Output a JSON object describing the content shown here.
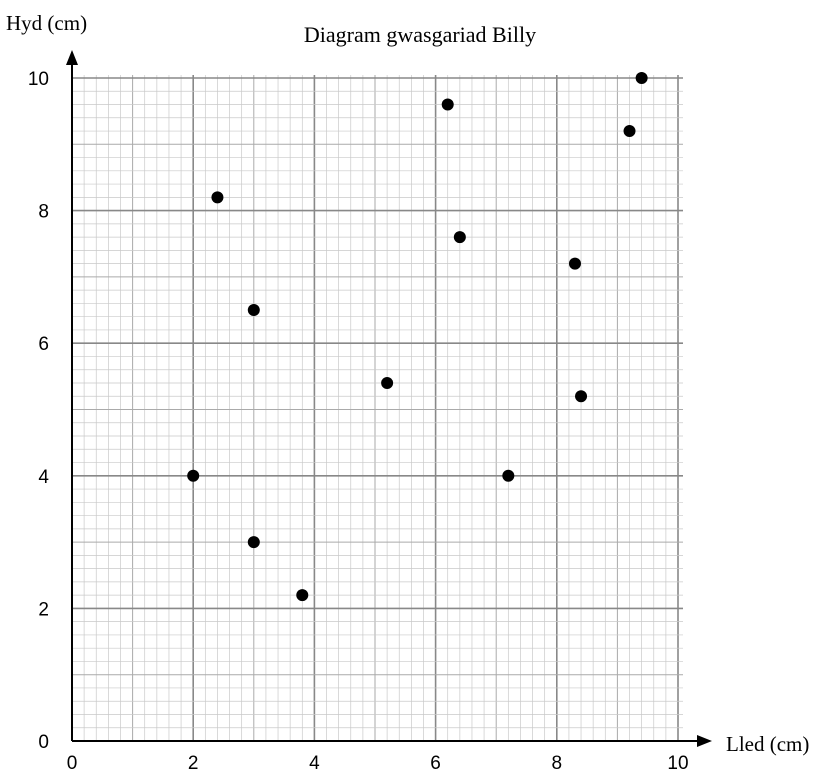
{
  "chart_data": {
    "type": "scatter",
    "title": "Diagram gwasgariad Billy",
    "xlabel": "Lled (cm)",
    "ylabel": "Hyd (cm)",
    "xlim": [
      0,
      10
    ],
    "ylim": [
      0,
      10
    ],
    "x_ticks": [
      "0",
      "2",
      "4",
      "6",
      "8",
      "10"
    ],
    "y_ticks": [
      "0",
      "2",
      "4",
      "6",
      "8",
      "10"
    ],
    "grid": true,
    "points": [
      {
        "x": 2.0,
        "y": 4.0
      },
      {
        "x": 2.4,
        "y": 8.2
      },
      {
        "x": 3.0,
        "y": 6.5
      },
      {
        "x": 3.0,
        "y": 3.0
      },
      {
        "x": 3.8,
        "y": 2.2
      },
      {
        "x": 5.2,
        "y": 5.4
      },
      {
        "x": 6.2,
        "y": 9.6
      },
      {
        "x": 6.4,
        "y": 7.6
      },
      {
        "x": 7.2,
        "y": 4.0
      },
      {
        "x": 8.3,
        "y": 7.2
      },
      {
        "x": 8.4,
        "y": 5.2
      },
      {
        "x": 9.2,
        "y": 9.2
      },
      {
        "x": 9.4,
        "y": 10.0
      }
    ]
  }
}
